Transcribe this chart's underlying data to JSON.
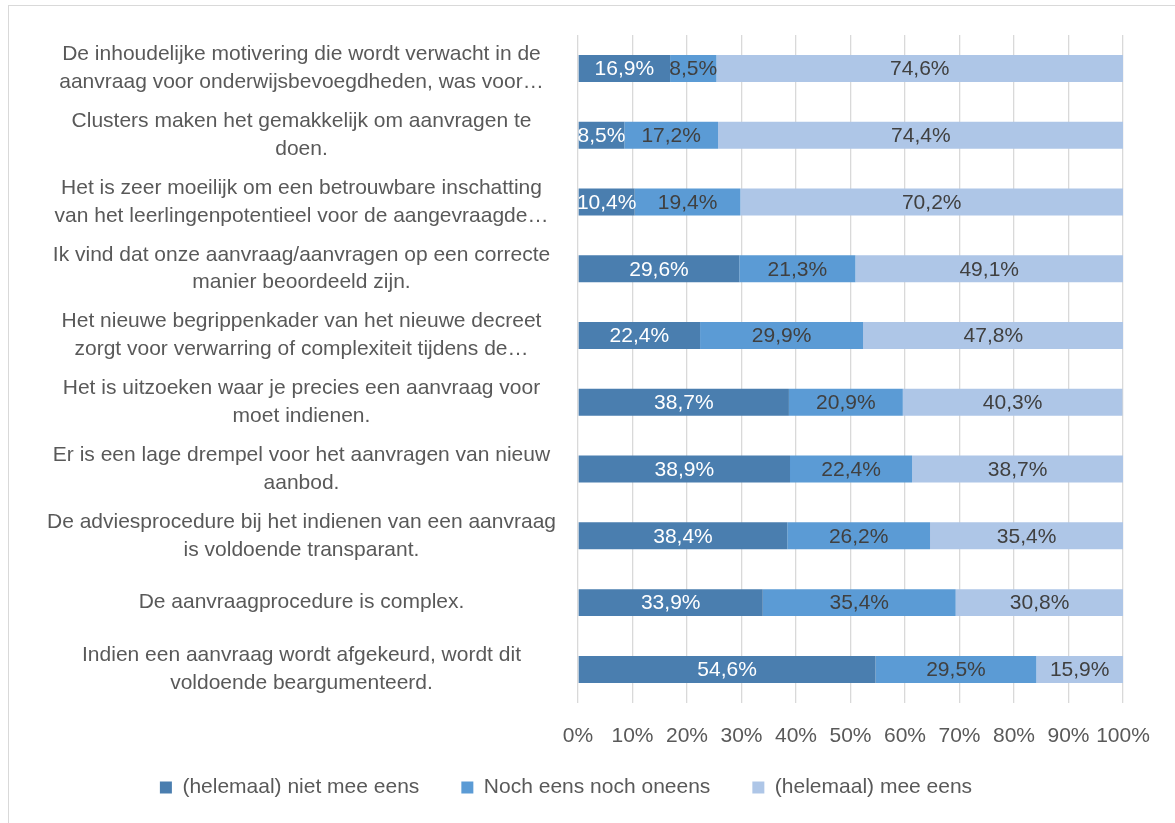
{
  "chart_data": {
    "type": "bar",
    "orientation": "horizontal",
    "stacked": true,
    "categories": [
      "De inhoudelijke motivering die wordt verwacht in de aanvraag voor onderwijsbevoegdheden, was voor…",
      "Clusters maken het gemakkelijk om aanvragen te doen.",
      "Het is zeer moeilijk om een betrouwbare inschatting van het leerlingenpotentieel voor de aangevraagde…",
      "Ik vind dat onze aanvraag/aanvragen op een correcte manier beoordeeld zijn.",
      "Het nieuwe begrippenkader van het nieuwe decreet zorgt voor verwarring of complexiteit tijdens de…",
      "Het is uitzoeken waar je precies een aanvraag voor moet indienen.",
      "Er is een lage drempel voor het aanvragen van nieuw aanbod.",
      "De adviesprocedure bij het indienen van een aanvraag is voldoende transparant.",
      "De aanvraagprocedure is complex.",
      "Indien een aanvraag wordt afgekeurd, wordt dit voldoende beargumenteerd."
    ],
    "series": [
      {
        "name": "(helemaal) niet mee eens",
        "color": "#4a7eaf",
        "values": [
          16.9,
          8.5,
          10.4,
          29.6,
          22.4,
          38.7,
          38.9,
          38.4,
          33.9,
          54.6
        ],
        "value_labels": [
          "16,9%",
          "8,5%",
          "10,4%",
          "29,6%",
          "22,4%",
          "38,7%",
          "38,9%",
          "38,4%",
          "33,9%",
          "54,6%"
        ]
      },
      {
        "name": "Noch eens noch oneens",
        "color": "#5b9bd5",
        "values": [
          8.5,
          17.2,
          19.4,
          21.3,
          29.9,
          20.9,
          22.4,
          26.2,
          35.4,
          29.5
        ],
        "value_labels": [
          "8,5%",
          "17,2%",
          "19,4%",
          "21,3%",
          "29,9%",
          "20,9%",
          "22,4%",
          "26,2%",
          "35,4%",
          "29,5%"
        ]
      },
      {
        "name": "(helemaal) mee eens",
        "color": "#aec6e7",
        "values": [
          74.6,
          74.4,
          70.2,
          49.1,
          47.8,
          40.3,
          38.7,
          35.4,
          30.8,
          15.9
        ],
        "value_labels": [
          "74,6%",
          "74,4%",
          "70,2%",
          "49,1%",
          "47,8%",
          "40,3%",
          "38,7%",
          "35,4%",
          "30,8%",
          "15,9%"
        ]
      }
    ],
    "xlim": [
      0,
      100
    ],
    "xticks": [
      {
        "value": 0,
        "label": "0%"
      },
      {
        "value": 10,
        "label": "10%"
      },
      {
        "value": 20,
        "label": "20%"
      },
      {
        "value": 30,
        "label": "30%"
      },
      {
        "value": 40,
        "label": "40%"
      },
      {
        "value": 50,
        "label": "50%"
      },
      {
        "value": 60,
        "label": "60%"
      },
      {
        "value": 70,
        "label": "70%"
      },
      {
        "value": 80,
        "label": "80%"
      },
      {
        "value": 90,
        "label": "90%"
      },
      {
        "value": 100,
        "label": "100%"
      }
    ],
    "grid": "x",
    "legend": "bottom"
  }
}
